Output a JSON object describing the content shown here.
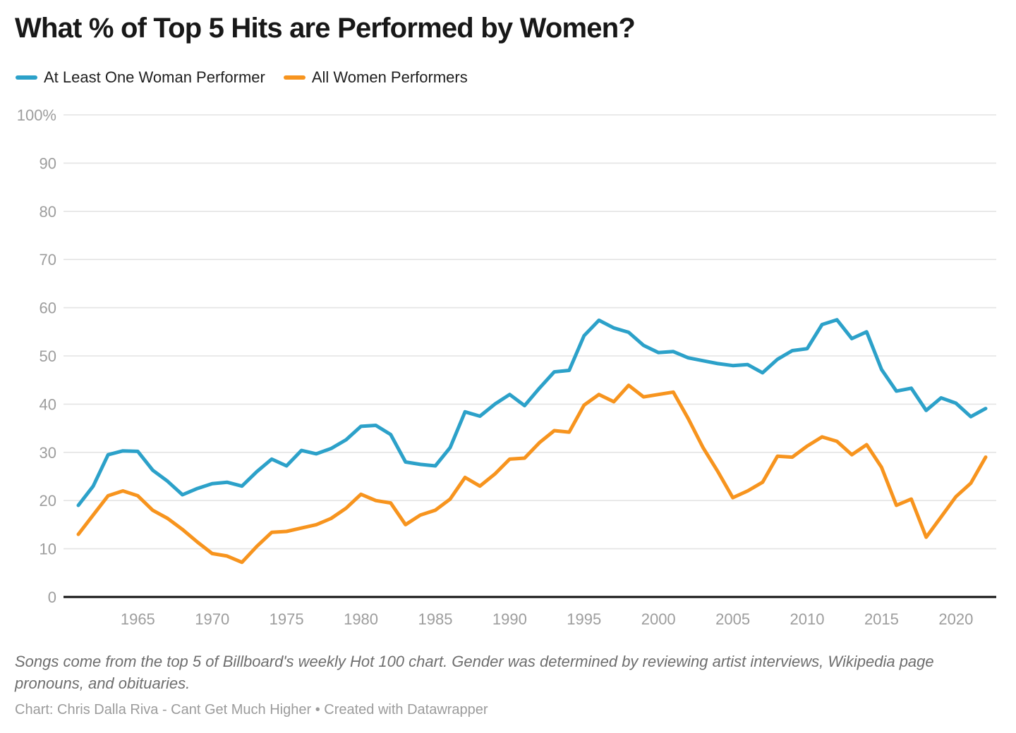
{
  "title": "What % of Top 5 Hits are Performed by Women?",
  "notes": "Songs come from the top 5 of Billboard's weekly Hot 100 chart. Gender was determined by reviewing artist interviews, Wikipedia page pronouns, and obituaries.",
  "byline": "Chart: Chris Dalla Riva - Cant Get Much Higher • Created with Datawrapper",
  "colors": {
    "blue": "#2CA1C9",
    "orange": "#F7941E",
    "grid": "#e4e4e4",
    "axis": "#0f0f0f",
    "tick_text": "#9d9d9d"
  },
  "chart_data": {
    "type": "line",
    "title": "What % of Top 5 Hits are Performed by Women?",
    "xlabel": "",
    "ylabel": "",
    "grid": "horizontal-only",
    "legend_position": "top-left",
    "xlim": [
      1961,
      2022
    ],
    "ylim": [
      0,
      100
    ],
    "yticks": [
      0,
      10,
      20,
      30,
      40,
      50,
      60,
      70,
      80,
      90,
      100
    ],
    "ytick_labels": [
      "0",
      "10",
      "20",
      "30",
      "40",
      "50",
      "60",
      "70",
      "80",
      "90",
      "100%"
    ],
    "xticks": [
      1965,
      1970,
      1975,
      1980,
      1985,
      1990,
      1995,
      2000,
      2005,
      2010,
      2015,
      2020
    ],
    "x": [
      1961,
      1962,
      1963,
      1964,
      1965,
      1966,
      1967,
      1968,
      1969,
      1970,
      1971,
      1972,
      1973,
      1974,
      1975,
      1976,
      1977,
      1978,
      1979,
      1980,
      1981,
      1982,
      1983,
      1984,
      1985,
      1986,
      1987,
      1988,
      1989,
      1990,
      1991,
      1992,
      1993,
      1994,
      1995,
      1996,
      1997,
      1998,
      1999,
      2000,
      2001,
      2002,
      2003,
      2004,
      2005,
      2006,
      2007,
      2008,
      2009,
      2010,
      2011,
      2012,
      2013,
      2014,
      2015,
      2016,
      2017,
      2018,
      2019,
      2020,
      2021,
      2022
    ],
    "series": [
      {
        "name": "At Least One Woman Performer",
        "color": "#2CA1C9",
        "values": [
          19,
          23,
          29.5,
          30.3,
          30.2,
          26.3,
          24,
          21.2,
          22.5,
          23.5,
          23.8,
          23,
          26,
          28.6,
          27.2,
          30.4,
          29.7,
          30.8,
          32.6,
          35.4,
          35.6,
          33.7,
          28,
          27.5,
          27.2,
          31,
          38.4,
          37.5,
          40,
          42,
          39.7,
          43.3,
          46.7,
          47,
          54.2,
          57.4,
          55.8,
          54.9,
          52.2,
          50.7,
          50.9,
          49.6,
          49,
          48.4,
          48,
          48.2,
          46.5,
          49.3,
          51.1,
          51.5,
          56.5,
          57.5,
          53.6,
          55,
          47.2,
          42.7,
          43.3,
          38.7,
          41.3,
          40.2,
          37.4,
          39.1
        ]
      },
      {
        "name": "All Women Performers",
        "color": "#F7941E",
        "values": [
          13,
          17,
          21,
          22,
          21,
          18,
          16.3,
          14,
          11.4,
          9,
          8.5,
          7.2,
          10.5,
          13.4,
          13.6,
          14.3,
          15,
          16.3,
          18.4,
          21.3,
          20,
          19.5,
          15,
          17,
          18,
          20.3,
          24.8,
          23,
          25.5,
          28.6,
          28.8,
          32,
          34.5,
          34.2,
          39.8,
          42,
          40.5,
          43.9,
          41.5,
          42,
          42.5,
          37,
          31,
          26,
          20.6,
          22,
          23.8,
          29.2,
          29,
          31.3,
          33.2,
          32.3,
          29.5,
          31.6,
          26.9,
          19,
          20.3,
          12.4,
          16.6,
          20.8,
          23.6,
          29
        ]
      }
    ]
  }
}
